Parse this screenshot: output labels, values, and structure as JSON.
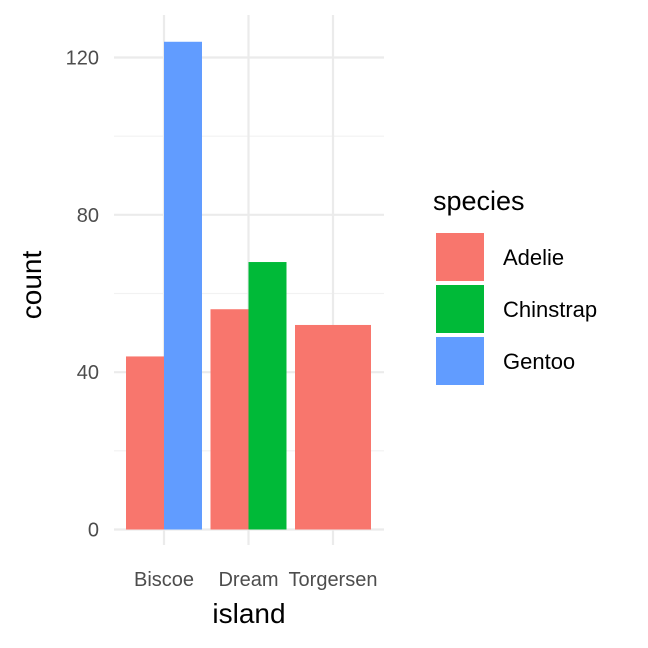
{
  "chart_data": {
    "type": "bar",
    "position": "dodge",
    "categories": [
      "Biscoe",
      "Dream",
      "Torgersen"
    ],
    "series": [
      {
        "name": "Adelie",
        "color": "#F8766D",
        "values": [
          44,
          56,
          52
        ]
      },
      {
        "name": "Chinstrap",
        "color": "#00BA38",
        "values": [
          null,
          68,
          null
        ]
      },
      {
        "name": "Gentoo",
        "color": "#619CFF",
        "values": [
          124,
          null,
          null
        ]
      }
    ],
    "xlabel": "island",
    "ylabel": "count",
    "ylim": [
      0,
      130
    ],
    "y_ticks": [
      "0",
      "40",
      "80",
      "120"
    ],
    "y_tick_values": [
      0,
      40,
      80,
      120
    ],
    "y_minor_tick_values": [
      20,
      60,
      100
    ],
    "legend": {
      "title": "species",
      "position": "right"
    },
    "grid": true,
    "theme": "minimal"
  }
}
